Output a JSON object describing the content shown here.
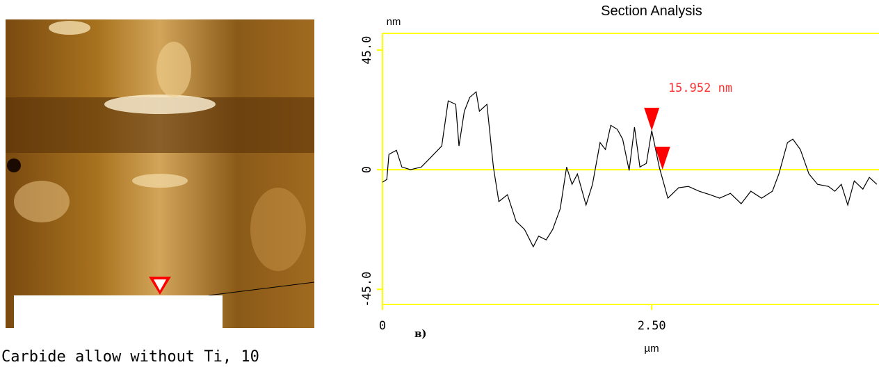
{
  "chart_data": {
    "type": "line",
    "title": "Section Analysis",
    "y_label": "nm",
    "x_label": "µm",
    "annotation": "15.952 nm",
    "x": [
      0,
      0.04,
      0.06,
      0.13,
      0.18,
      0.26,
      0.36,
      0.45,
      0.55,
      0.61,
      0.68,
      0.71,
      0.76,
      0.81,
      0.87,
      0.9,
      0.97,
      1.03,
      1.08,
      1.16,
      1.24,
      1.32,
      1.4,
      1.45,
      1.52,
      1.58,
      1.65,
      1.71,
      1.76,
      1.81,
      1.89,
      1.95,
      2.02,
      2.07,
      2.12,
      2.18,
      2.23,
      2.29,
      2.34,
      2.39,
      2.45,
      2.5,
      2.57,
      2.65,
      2.75,
      2.84,
      2.94,
      3.04,
      3.13,
      3.23,
      3.33,
      3.42,
      3.52,
      3.62,
      3.68,
      3.76,
      3.81,
      3.88,
      3.96,
      4.04,
      4.14,
      4.2,
      4.26,
      4.32,
      4.38,
      4.46,
      4.52,
      4.59
    ],
    "values": [
      -4.7,
      -3.7,
      5.8,
      7.3,
      1,
      0,
      1,
      4.7,
      8.9,
      25.9,
      24.6,
      8.9,
      22,
      27.2,
      29.3,
      22,
      24.6,
      1,
      -12,
      -9.4,
      -19.4,
      -22.5,
      -29,
      -25,
      -26.4,
      -22.5,
      -14.7,
      1,
      -5.5,
      -1.6,
      -13.3,
      -5.5,
      10.2,
      7.6,
      16.7,
      15.2,
      11.5,
      -0.3,
      16,
      1,
      2.4,
      14.7,
      1,
      -10.7,
      -6.8,
      -6.3,
      -8.1,
      -9.4,
      -10.7,
      -8.9,
      -12.8,
      -8.1,
      -10.7,
      -8.1,
      -1.6,
      10.2,
      11.5,
      7.6,
      -1.6,
      -5.5,
      -6.3,
      -8.1,
      -5.5,
      -13.3,
      -4.2,
      -7.3,
      -2.9,
      -5.5
    ],
    "color": "#000000",
    "markers": {
      "x": [
        2.5,
        2.6
      ],
      "values": [
        14.7,
        0
      ],
      "color": "#ff0000"
    },
    "axis_color": "#ffff00",
    "xlim": [
      0,
      4.61
    ],
    "ylim": [
      -50.7,
      51.3
    ],
    "xticks": [
      0,
      {
        "value": 2.5,
        "label": "2.50"
      }
    ],
    "yticks": [
      {
        "value": -45,
        "label": "-45.0"
      },
      0,
      {
        "value": 45,
        "label": "45.0"
      }
    ]
  },
  "caption": "Carbide allow without Ti, 10",
  "panel_label": "в)"
}
